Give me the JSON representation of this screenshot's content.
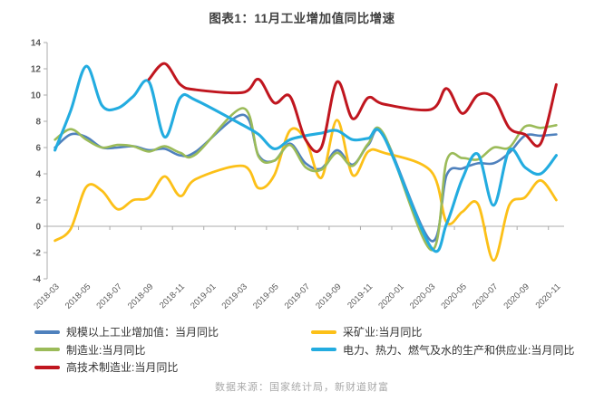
{
  "title": "图表1：11月工业增加值同比增速",
  "source_note": "数据来源：国家统计局，新财道财富",
  "chart_data": {
    "type": "line",
    "x": [
      "2018-03",
      "2018-04",
      "2018-05",
      "2018-06",
      "2018-07",
      "2018-08",
      "2018-09",
      "2018-10",
      "2018-11",
      "2018-12",
      "2019-01",
      "2019-02",
      "2019-03",
      "2019-04",
      "2019-05",
      "2019-06",
      "2019-07",
      "2019-08",
      "2019-09",
      "2019-10",
      "2019-11",
      "2019-12",
      "2020-01",
      "2020-02",
      "2020-03",
      "2020-04",
      "2020-05",
      "2020-06",
      "2020-07",
      "2020-08",
      "2020-09",
      "2020-10",
      "2020-11"
    ],
    "x_tick_labels": [
      "2018-03",
      "2018-05",
      "2018-07",
      "2018-09",
      "2018-11",
      "2019-01",
      "2019-03",
      "2019-05",
      "2019-07",
      "2019-09",
      "2019-11",
      "2020-01",
      "2020-03",
      "2020-05",
      "2020-07",
      "2020-09",
      "2020-11"
    ],
    "ylim": [
      -4,
      14
    ],
    "y_ticks": [
      14,
      12,
      10,
      8,
      6,
      4,
      2,
      0,
      -2,
      -4
    ],
    "grid": false,
    "legend_position": "bottom",
    "axis_color": "#ababab",
    "tick_label_color": "#595959",
    "series": [
      {
        "key": "overall",
        "name": "规模以上工业增加值：当月同比",
        "color": "#4f81bd",
        "width": 2.6,
        "values": [
          6.0,
          7.0,
          6.8,
          6.0,
          6.0,
          6.1,
          5.8,
          5.9,
          5.4,
          5.7,
          null,
          null,
          8.5,
          5.4,
          5.0,
          6.3,
          4.8,
          4.4,
          5.8,
          4.7,
          6.2,
          6.9,
          null,
          null,
          -1.1,
          3.9,
          4.4,
          4.8,
          4.8,
          5.6,
          6.9,
          6.9,
          7.0
        ]
      },
      {
        "key": "mining",
        "name": "采矿业:当月同比",
        "color": "#fcc018",
        "width": 2.8,
        "values": [
          -1.1,
          -0.2,
          3.0,
          2.7,
          1.3,
          2.0,
          2.2,
          3.8,
          2.3,
          3.6,
          null,
          null,
          4.6,
          2.9,
          3.9,
          7.3,
          6.6,
          3.7,
          8.1,
          3.9,
          5.7,
          5.6,
          null,
          null,
          4.2,
          0.3,
          1.1,
          1.7,
          -2.6,
          1.6,
          2.2,
          3.5,
          2.0
        ]
      },
      {
        "key": "manufacturing",
        "name": "制造业:当月同比",
        "color": "#9bbb59",
        "width": 2.6,
        "values": [
          6.6,
          7.4,
          6.6,
          6.0,
          6.2,
          6.1,
          5.7,
          6.1,
          5.6,
          5.5,
          null,
          null,
          9.0,
          5.3,
          5.0,
          6.2,
          4.5,
          4.3,
          5.6,
          4.6,
          6.3,
          7.0,
          null,
          null,
          -1.8,
          5.0,
          5.2,
          5.1,
          6.0,
          6.0,
          7.6,
          7.5,
          7.7
        ]
      },
      {
        "key": "electricity",
        "name": "电力、热力、燃气及水的生产和供应业:当月同比",
        "color": "#23ace0",
        "width": 3.1,
        "values": [
          5.8,
          8.8,
          12.2,
          9.2,
          9.0,
          9.9,
          11.0,
          6.8,
          9.8,
          9.6,
          null,
          null,
          7.7,
          7.0,
          5.9,
          6.6,
          6.9,
          7.1,
          7.3,
          6.6,
          6.7,
          6.8,
          null,
          null,
          -1.6,
          0.2,
          3.6,
          5.5,
          1.6,
          5.8,
          4.5,
          4.0,
          5.4
        ]
      },
      {
        "key": "hightech",
        "name": "高技术制造业:当月同比",
        "color": "#c0161f",
        "width": 3.0,
        "values": [
          null,
          null,
          null,
          null,
          null,
          null,
          11.2,
          12.4,
          10.8,
          10.4,
          null,
          null,
          10.2,
          11.2,
          9.4,
          9.9,
          6.6,
          6.0,
          11.0,
          8.2,
          9.8,
          9.3,
          null,
          null,
          8.9,
          10.5,
          8.6,
          10.0,
          9.8,
          7.5,
          7.0,
          6.3,
          10.8
        ]
      }
    ]
  }
}
